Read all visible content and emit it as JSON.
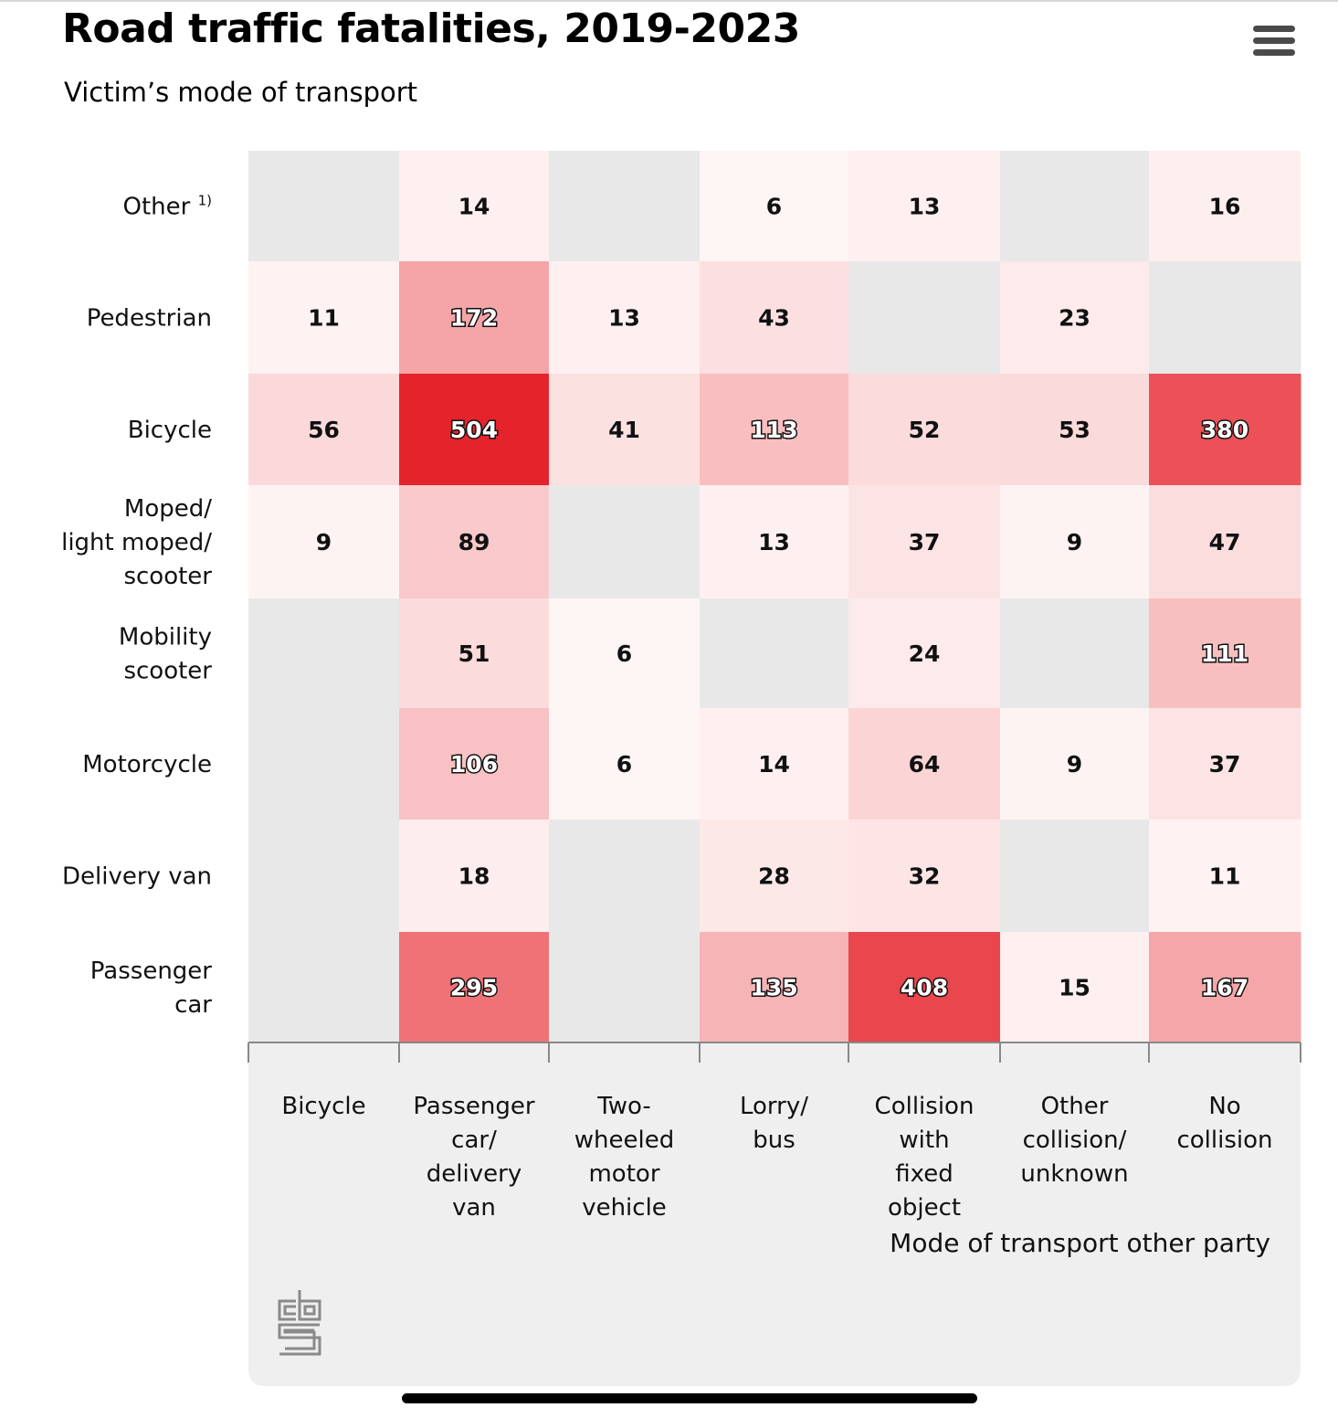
{
  "header": {
    "title": "Road traffic fatalities, 2019-2023",
    "subtitle": "Victim’s mode of transport"
  },
  "menu": {
    "icon": "hamburger-menu-icon"
  },
  "logo": {
    "icon": "cbs-logo-icon"
  },
  "chart_data": {
    "type": "heatmap",
    "title": "Road traffic fatalities, 2019-2023",
    "subtitle": "Victim’s mode of transport",
    "xlabel": "Mode of transport other party",
    "ylabel": "",
    "rows": [
      {
        "label": [
          "Other",
          "1)"
        ]
      },
      {
        "label": [
          "Pedestrian"
        ]
      },
      {
        "label": [
          "Bicycle"
        ]
      },
      {
        "label": [
          "Moped/",
          "light moped/",
          "scooter"
        ]
      },
      {
        "label": [
          "Mobility",
          "scooter"
        ]
      },
      {
        "label": [
          "Motorcycle"
        ]
      },
      {
        "label": [
          "Delivery van"
        ]
      },
      {
        "label": [
          "Passenger",
          "car"
        ]
      }
    ],
    "columns": [
      {
        "label": [
          "Bicycle"
        ]
      },
      {
        "label": [
          "Passenger",
          "car/",
          "delivery",
          "van"
        ]
      },
      {
        "label": [
          "Two-",
          "wheeled",
          "motor",
          "vehicle"
        ]
      },
      {
        "label": [
          "Lorry/",
          "bus"
        ]
      },
      {
        "label": [
          "Collision",
          "with",
          "fixed",
          "object"
        ]
      },
      {
        "label": [
          "Other",
          "collision/",
          "unknown"
        ]
      },
      {
        "label": [
          "No",
          "collision"
        ]
      }
    ],
    "values": [
      [
        null,
        14,
        null,
        6,
        13,
        null,
        16
      ],
      [
        11,
        172,
        13,
        43,
        null,
        23,
        null
      ],
      [
        56,
        504,
        41,
        113,
        52,
        53,
        380
      ],
      [
        9,
        89,
        null,
        13,
        37,
        9,
        47
      ],
      [
        null,
        51,
        6,
        null,
        24,
        null,
        111
      ],
      [
        null,
        106,
        6,
        14,
        64,
        9,
        37
      ],
      [
        null,
        18,
        null,
        28,
        32,
        null,
        11
      ],
      [
        null,
        295,
        null,
        135,
        408,
        15,
        167
      ]
    ],
    "color_scale": {
      "min_color": "#fffafa",
      "max_color": "#e5232b",
      "missing_color": "#e8e8e8",
      "max_value": 504
    },
    "grid": false,
    "legend": "none"
  }
}
